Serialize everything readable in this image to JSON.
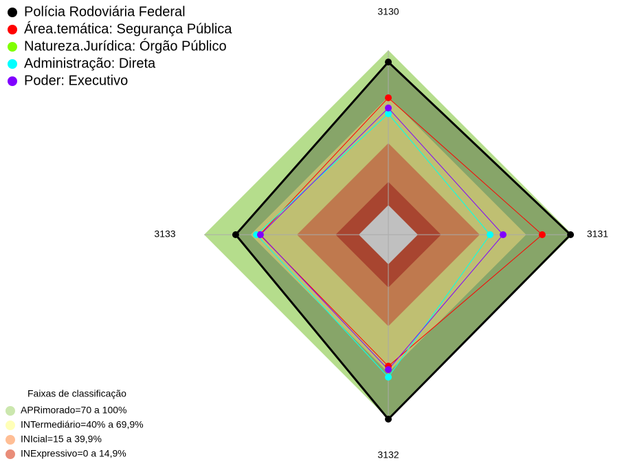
{
  "chart_data": {
    "type": "radar",
    "axes": [
      "3130",
      "3131",
      "3132",
      "3133"
    ],
    "rlim": [
      -19.1,
      100
    ],
    "series": [
      {
        "name": "Polícia Rodoviária Federal",
        "color": "#000000",
        "values": [
          92.4,
          98.7,
          100,
          79.6
        ]
      },
      {
        "name": "Área.temática: Segurança Pública",
        "color": "#ff0000",
        "values": [
          69.3,
          80.4,
          65.8,
          64
        ]
      },
      {
        "name": "Natureza.Jurídica: Órgão Público",
        "color": "#7fff00",
        "values": [
          59,
          46.7,
          72.9,
          66.2
        ]
      },
      {
        "name": "Administração: Direta",
        "color": "#00ffff",
        "values": [
          59,
          46.7,
          72.9,
          66.2
        ]
      },
      {
        "name": "Poder: Executivo",
        "color": "#8000ff",
        "values": [
          62.7,
          55.1,
          68,
          63.6
        ]
      }
    ],
    "bands_title": "Faixas de classificação",
    "bands": [
      {
        "label": "APRimorado=70 a 100%",
        "value": 100,
        "color": "#b5dd8c"
      },
      {
        "label": "INTermediário=40% a 69,9%",
        "value": 70,
        "color": "#ffff99"
      },
      {
        "label": "INIcial=15 a 39,9%",
        "value": 40,
        "color": "#ffa268"
      },
      {
        "label": "INExpressivo=0 a 14,9%",
        "value": 15,
        "color": "#e05c40"
      }
    ]
  }
}
